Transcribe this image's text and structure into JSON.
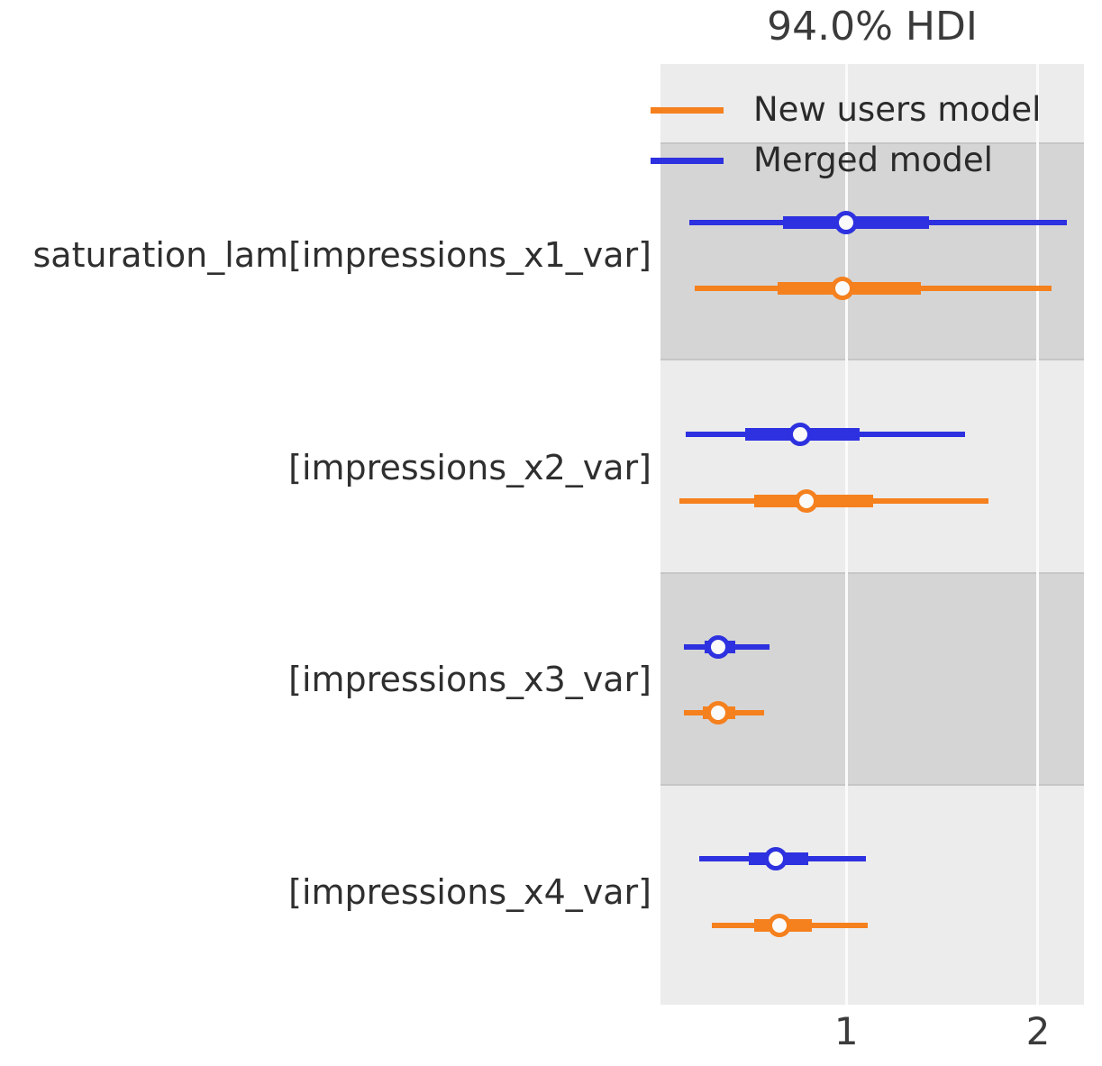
{
  "figure": {
    "title": "94.0% HDI"
  },
  "legend": {
    "items": [
      {
        "label": "New users model",
        "color": "#f5801e"
      },
      {
        "label": "Merged model",
        "color": "#2d31df"
      }
    ]
  },
  "x_axis": {
    "tick_labels": [
      "1",
      "2"
    ]
  },
  "chart_data": {
    "type": "forest",
    "title": "94.0% HDI",
    "hdi_prob": 0.94,
    "xlabel": "",
    "ylabel": "",
    "xlim": [
      0.03,
      2.24
    ],
    "xticks": [
      1,
      2
    ],
    "grid": "vertical-white-gridlines",
    "legend_position": "upper-left",
    "colors": {
      "light_band": "#ececec",
      "dark_band": "#d5d5d5",
      "merged_model": "#2d31df",
      "new_users_model": "#f5801e"
    },
    "series_order_top_to_bottom": [
      "Merged model",
      "New users model"
    ],
    "rows": [
      {
        "label": "saturation_lam[impressions_x1_var]",
        "shaded": true,
        "estimates": [
          {
            "model": "Merged model",
            "color": "#2d31df",
            "hdi_94": [
              0.18,
              2.15
            ],
            "quartile_range": [
              0.67,
              1.43
            ],
            "point": 1.0
          },
          {
            "model": "New users model",
            "color": "#f5801e",
            "hdi_94": [
              0.21,
              2.07
            ],
            "quartile_range": [
              0.64,
              1.39
            ],
            "point": 0.98
          }
        ]
      },
      {
        "label": "[impressions_x2_var]",
        "shaded": false,
        "estimates": [
          {
            "model": "Merged model",
            "color": "#2d31df",
            "hdi_94": [
              0.16,
              1.62
            ],
            "quartile_range": [
              0.47,
              1.07
            ],
            "point": 0.76
          },
          {
            "model": "New users model",
            "color": "#f5801e",
            "hdi_94": [
              0.13,
              1.74
            ],
            "quartile_range": [
              0.52,
              1.14
            ],
            "point": 0.79
          }
        ]
      },
      {
        "label": "[impressions_x3_var]",
        "shaded": true,
        "estimates": [
          {
            "model": "Merged model",
            "color": "#2d31df",
            "hdi_94": [
              0.15,
              0.6
            ],
            "quartile_range": [
              0.26,
              0.42
            ],
            "point": 0.33
          },
          {
            "model": "New users model",
            "color": "#f5801e",
            "hdi_94": [
              0.15,
              0.57
            ],
            "quartile_range": [
              0.25,
              0.42
            ],
            "point": 0.33
          }
        ]
      },
      {
        "label": "[impressions_x4_var]",
        "shaded": false,
        "estimates": [
          {
            "model": "Merged model",
            "color": "#2d31df",
            "hdi_94": [
              0.23,
              1.1
            ],
            "quartile_range": [
              0.49,
              0.8
            ],
            "point": 0.63
          },
          {
            "model": "New users model",
            "color": "#f5801e",
            "hdi_94": [
              0.3,
              1.11
            ],
            "quartile_range": [
              0.52,
              0.82
            ],
            "point": 0.65
          }
        ]
      }
    ]
  }
}
